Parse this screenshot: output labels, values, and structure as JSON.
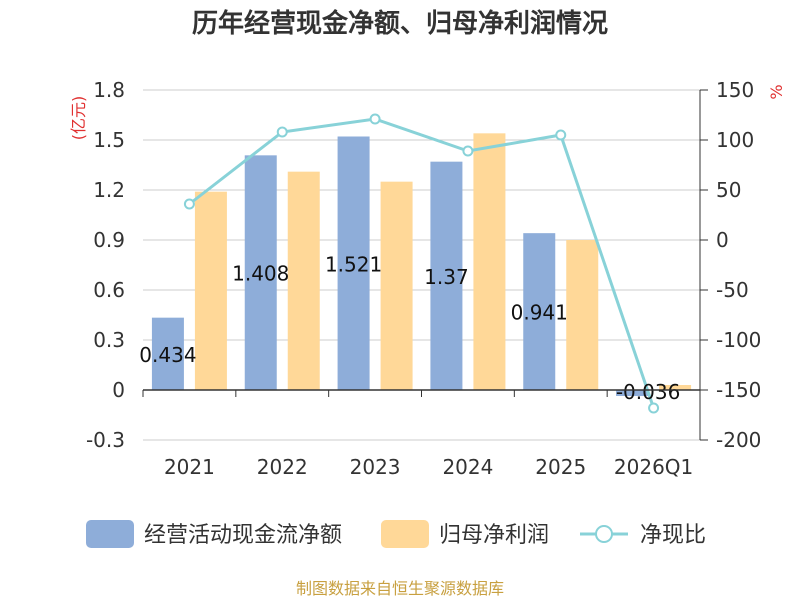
{
  "chart_data": {
    "type": "bar",
    "title": "历年经营现金净额、归母净利润情况",
    "categories": [
      "2021",
      "2022",
      "2023",
      "2024",
      "2025",
      "2026Q1"
    ],
    "series": [
      {
        "name": "经营活动现金流净额",
        "kind": "bar",
        "axis": "left",
        "color": "#8EADD9",
        "values": [
          0.434,
          1.408,
          1.521,
          1.37,
          0.941,
          -0.036
        ],
        "labels": [
          "0.434",
          "1.408",
          "1.521",
          "1.37",
          "0.941",
          "-0.036"
        ]
      },
      {
        "name": "归母净利润",
        "kind": "bar",
        "axis": "left",
        "color": "#FFD898",
        "values": [
          1.19,
          1.31,
          1.25,
          1.54,
          0.9,
          0.03
        ]
      },
      {
        "name": "净现比",
        "kind": "line",
        "axis": "right",
        "color": "#88D2D8",
        "values": [
          36,
          108,
          121,
          89,
          105,
          -168
        ]
      }
    ],
    "left_axis": {
      "unit": "(亿元)",
      "min": -0.3,
      "max": 1.8,
      "ticks": [
        {
          "v": 1.8,
          "t": "1.8"
        },
        {
          "v": 1.5,
          "t": "1.5"
        },
        {
          "v": 1.2,
          "t": "1.2"
        },
        {
          "v": 0.9,
          "t": "0.9"
        },
        {
          "v": 0.6,
          "t": "0.6"
        },
        {
          "v": 0.3,
          "t": "0.3"
        },
        {
          "v": 0,
          "t": "0"
        },
        {
          "v": -0.3,
          "t": "-0.3"
        }
      ]
    },
    "right_axis": {
      "unit": "%",
      "min": -200,
      "max": 150,
      "ticks": [
        {
          "v": 150,
          "t": "150"
        },
        {
          "v": 100,
          "t": "100"
        },
        {
          "v": 50,
          "t": "50"
        },
        {
          "v": 0,
          "t": "0"
        },
        {
          "v": -50,
          "t": "-50"
        },
        {
          "v": -100,
          "t": "-100"
        },
        {
          "v": -150,
          "t": "-150"
        },
        {
          "v": -200,
          "t": "-200"
        }
      ]
    },
    "grid": true,
    "legend": "bottom"
  },
  "source": "制图数据来自恒生聚源数据库"
}
